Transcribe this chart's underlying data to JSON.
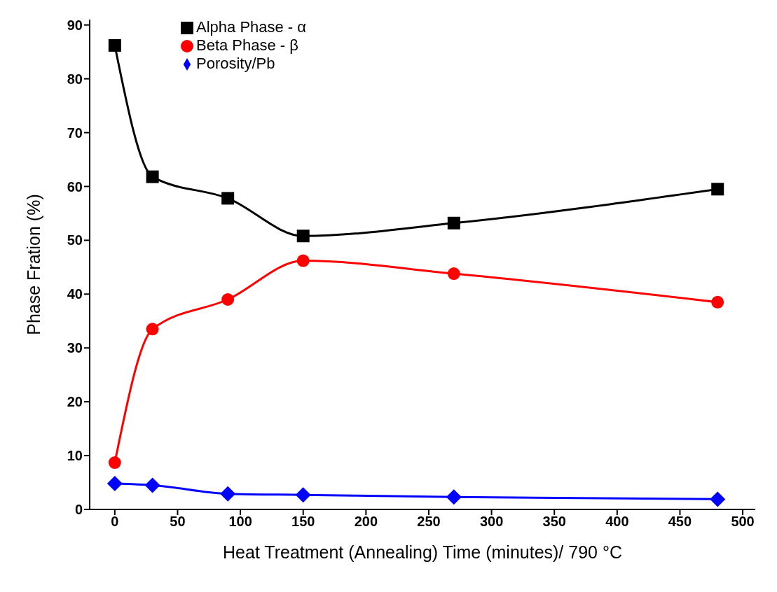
{
  "chart_data": {
    "type": "line",
    "xlabel": "Heat Treatment (Annealing) Time (minutes)/ 790 °C",
    "ylabel": "Phase Fration (%)",
    "x": [
      0,
      30,
      90,
      150,
      270,
      480
    ],
    "series": [
      {
        "name": "Alpha Phase - α",
        "color": "#000000",
        "marker": "square",
        "values": [
          86.2,
          61.8,
          57.8,
          50.8,
          53.2,
          59.5
        ]
      },
      {
        "name": "Beta Phase - β",
        "color": "#ff0000",
        "marker": "circle",
        "values": [
          8.7,
          33.5,
          39.0,
          46.2,
          43.8,
          38.5
        ]
      },
      {
        "name": "Porosity/Pb",
        "color": "#0000ff",
        "marker": "diamond",
        "values": [
          4.8,
          4.5,
          2.9,
          2.7,
          2.3,
          1.9
        ]
      }
    ],
    "xlim": [
      -20,
      510
    ],
    "xticks": [
      0,
      50,
      100,
      150,
      200,
      250,
      300,
      350,
      400,
      450,
      500
    ],
    "ylim": [
      0,
      91
    ],
    "yticks": [
      0,
      10,
      20,
      30,
      40,
      50,
      60,
      70,
      80,
      90
    ],
    "grid": false,
    "legend": "top left",
    "line_style": "solid"
  }
}
